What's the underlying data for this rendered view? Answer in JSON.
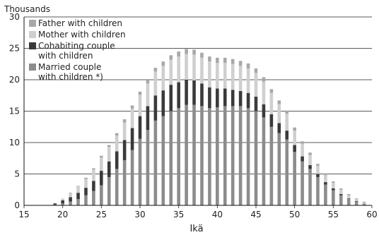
{
  "chart_data": {
    "type": "bar",
    "stacked": true,
    "ylabel": "Thousands",
    "xlabel": "Ikä",
    "xlim": [
      15,
      60
    ],
    "ylim": [
      0,
      30
    ],
    "xticks": [
      "15",
      "20",
      "25",
      "30",
      "35",
      "40",
      "45",
      "50",
      "55",
      "60"
    ],
    "yticks": [
      "0",
      "5",
      "10",
      "15",
      "20",
      "25",
      "30"
    ],
    "grid": "horizontal",
    "legend_position": "top-left",
    "x": [
      19,
      20,
      21,
      22,
      23,
      24,
      25,
      26,
      27,
      28,
      29,
      30,
      31,
      32,
      33,
      34,
      35,
      36,
      37,
      38,
      39,
      40,
      41,
      42,
      43,
      44,
      45,
      46,
      47,
      48,
      49,
      50,
      51,
      52,
      53,
      54,
      55,
      56,
      57,
      58,
      59
    ],
    "series": [
      {
        "name": "Married couple\nwith children *)",
        "color": "#8c8c8c",
        "values": [
          0.1,
          0.3,
          0.6,
          1.0,
          1.6,
          2.3,
          3.2,
          4.5,
          5.8,
          7.2,
          8.8,
          10.6,
          12.0,
          13.5,
          14.2,
          15.0,
          15.5,
          16.0,
          16.0,
          15.8,
          15.5,
          15.6,
          15.8,
          15.8,
          15.8,
          15.5,
          15.0,
          14.0,
          12.5,
          11.5,
          10.5,
          8.5,
          7.0,
          5.8,
          4.5,
          3.3,
          2.4,
          1.6,
          1.0,
          0.6,
          0.3
        ]
      },
      {
        "name": "Cohabiting couple\nwith children",
        "color": "#3a3a3a",
        "values": [
          0.2,
          0.5,
          0.7,
          1.0,
          1.2,
          1.6,
          2.3,
          2.5,
          2.8,
          3.2,
          3.5,
          3.6,
          3.8,
          4.0,
          4.1,
          4.2,
          4.1,
          4.0,
          3.9,
          3.6,
          3.3,
          3.0,
          2.8,
          2.6,
          2.4,
          2.4,
          2.3,
          2.1,
          2.0,
          1.6,
          1.4,
          1.1,
          0.8,
          0.6,
          0.5,
          0.4,
          0.3,
          0.2,
          0.1,
          0.1,
          0.0
        ]
      },
      {
        "name": "Mother with children",
        "color": "#cfcfcf",
        "values": [
          0.1,
          0.3,
          0.6,
          1.0,
          1.4,
          1.8,
          2.1,
          2.3,
          2.5,
          2.8,
          3.1,
          3.4,
          3.6,
          3.8,
          3.9,
          4.0,
          4.1,
          4.1,
          4.1,
          4.1,
          4.1,
          4.1,
          4.1,
          4.1,
          4.0,
          3.9,
          3.8,
          3.6,
          3.4,
          3.0,
          2.7,
          2.3,
          2.0,
          1.6,
          1.3,
          1.1,
          0.9,
          0.7,
          0.5,
          0.3,
          0.2
        ]
      },
      {
        "name": "Father with children",
        "color": "#a8a8a8",
        "values": [
          0.0,
          0.0,
          0.1,
          0.1,
          0.2,
          0.2,
          0.3,
          0.3,
          0.4,
          0.5,
          0.5,
          0.5,
          0.6,
          0.6,
          0.7,
          0.7,
          0.8,
          0.8,
          0.8,
          0.8,
          0.8,
          0.8,
          0.8,
          0.8,
          0.8,
          0.8,
          0.7,
          0.7,
          0.6,
          0.6,
          0.5,
          0.5,
          0.4,
          0.4,
          0.3,
          0.3,
          0.2,
          0.2,
          0.2,
          0.1,
          0.1
        ]
      }
    ]
  }
}
